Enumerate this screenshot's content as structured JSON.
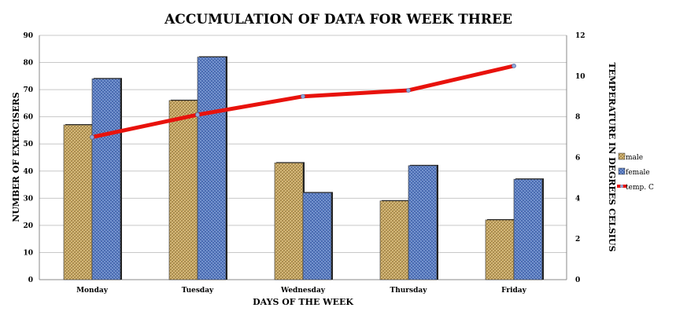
{
  "chart_data": {
    "type": "bar",
    "title": "ACCUMULATION OF DATA FOR WEEK THREE",
    "xlabel": "DAYS OF THE WEEK",
    "ylabel": "NUMBER OF EXERCISERS",
    "y2label": "TEMPERATURE IN DEGREES CELSIUS",
    "categories": [
      "Monday",
      "Tuesday",
      "Wednesday",
      "Thursday",
      "Friday"
    ],
    "ylim": [
      0,
      90
    ],
    "yticks": [
      "0",
      "10",
      "20",
      "30",
      "40",
      "50",
      "60",
      "70",
      "80",
      "90"
    ],
    "y2lim": [
      0,
      12
    ],
    "y2ticks": [
      "0",
      "2",
      "4",
      "6",
      "8",
      "10",
      "12"
    ],
    "grid": true,
    "legend_position": "right",
    "series": [
      {
        "name": "male",
        "type": "bar",
        "axis": "left",
        "color": "#c9a864",
        "values": [
          57,
          66,
          43,
          29,
          22
        ]
      },
      {
        "name": "female",
        "type": "bar",
        "axis": "left",
        "color": "#5b7fc4",
        "values": [
          74,
          82,
          32,
          42,
          37
        ]
      },
      {
        "name": "temp. C",
        "type": "line",
        "axis": "right",
        "color": "#e8120c",
        "values": [
          7.0,
          8.1,
          9.0,
          9.3,
          10.5
        ]
      }
    ]
  }
}
